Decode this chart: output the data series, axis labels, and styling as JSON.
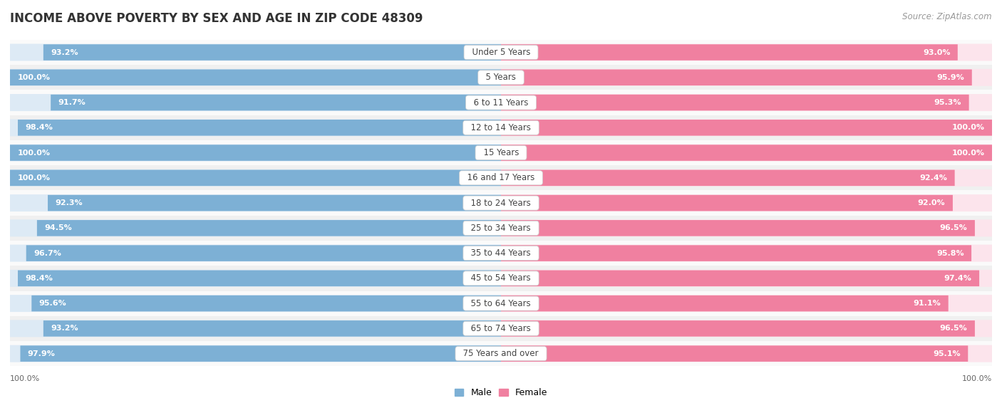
{
  "title": "INCOME ABOVE POVERTY BY SEX AND AGE IN ZIP CODE 48309",
  "source": "Source: ZipAtlas.com",
  "categories": [
    "Under 5 Years",
    "5 Years",
    "6 to 11 Years",
    "12 to 14 Years",
    "15 Years",
    "16 and 17 Years",
    "18 to 24 Years",
    "25 to 34 Years",
    "35 to 44 Years",
    "45 to 54 Years",
    "55 to 64 Years",
    "65 to 74 Years",
    "75 Years and over"
  ],
  "male_values": [
    93.2,
    100.0,
    91.7,
    98.4,
    100.0,
    100.0,
    92.3,
    94.5,
    96.7,
    98.4,
    95.6,
    93.2,
    97.9
  ],
  "female_values": [
    93.0,
    95.9,
    95.3,
    100.0,
    100.0,
    92.4,
    92.0,
    96.5,
    95.8,
    97.4,
    91.1,
    96.5,
    95.1
  ],
  "male_color": "#7db0d5",
  "female_color": "#f080a0",
  "male_track_color": "#ddeaf5",
  "female_track_color": "#fce4ec",
  "male_label": "Male",
  "female_label": "Female",
  "bar_height": 0.62,
  "title_fontsize": 12,
  "source_fontsize": 8.5,
  "value_fontsize": 8,
  "category_fontsize": 8.5,
  "axis_tick_fontsize": 8,
  "bg_color": "#ffffff",
  "row_alt_color": "#f0f0f0",
  "row_main_color": "#fafafa",
  "sep_color": "#e0e0e0"
}
